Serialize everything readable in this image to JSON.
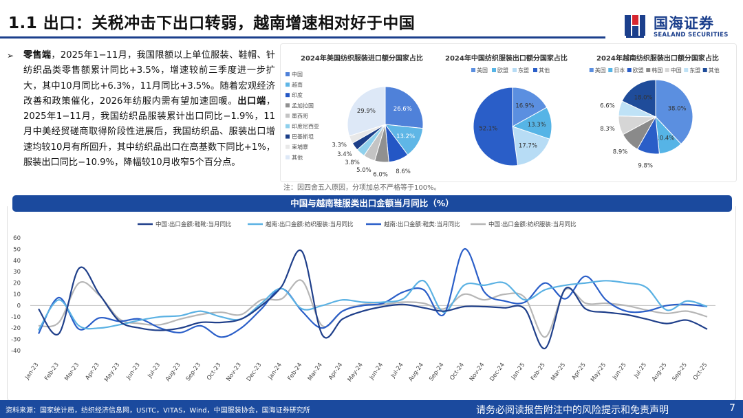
{
  "title": "1.1 出口：关税冲击下出口转弱，越南增速相对好于中国",
  "logo": {
    "cn": "国海证券",
    "en": "SEALAND SECURITIES"
  },
  "bullet": {
    "mark": "➢",
    "p1_bold": "零售端",
    "p1": "，2025年1−11月，我国限额以上单位服装、鞋帽、针纺织品类零售额累计同比+3.5%，增速较前三季度进一步扩大，其中10月同比+6.3%，11月同比+3.5%。随着宏观经济改善和政策催化，2026年纺服内需有望加速回暖。",
    "p2_bold": "出口端",
    "p2": "，2025年1−11月，我国纺织品服装累计出口同比−1.9%，11月中美经贸磋商取得阶段性进展后，我国纺织品、服装出口增速均较10月有所回升，其中纺织品出口在高基数下同比+1%，服装出口同比−10.9%，降幅较10月收窄5个百分点。"
  },
  "note": "注：因四舍五入原因，分项加总不严格等于100%。",
  "footer": {
    "source": "资料来源：国家统计局，纺织经济信息网，USITC，VITAS，Wind，中国服装协会，国海证券研究所",
    "disclaimer": "请务必阅读报告附注中的风险提示和免责声明",
    "page": "7"
  },
  "chart_data": [
    {
      "type": "pie",
      "title": "2024年美国纺织服装进口额分国家占比",
      "legend_position": "left",
      "categories": [
        "中国",
        "越南",
        "印度",
        "孟加拉国",
        "墨西哥",
        "印度尼西亚",
        "巴基斯坦",
        "柬埔寨",
        "其他"
      ],
      "values": [
        26.6,
        13.2,
        8.6,
        6.0,
        5.0,
        3.8,
        3.4,
        3.3,
        29.9
      ],
      "labels": [
        "26.6%",
        "13.2%",
        "8.6%",
        "6.0%",
        "5.0%",
        "3.8%",
        "3.4%",
        "3.3%",
        "29.9%"
      ],
      "colors": [
        "#4f81d9",
        "#5fb6e6",
        "#2457c5",
        "#909090",
        "#c4c4c4",
        "#8fd0ec",
        "#1c3f88",
        "#e8e8e8",
        "#dde8f7"
      ]
    },
    {
      "type": "pie",
      "title": "2024年中国纺织服装出口额分国家占比",
      "legend_position": "top",
      "categories": [
        "美国",
        "欧盟",
        "东盟",
        "其他"
      ],
      "values": [
        16.9,
        13.3,
        17.7,
        52.1
      ],
      "labels": [
        "16.9%",
        "13.3%",
        "17.7%",
        "52.1%"
      ],
      "colors": [
        "#5b8fe0",
        "#56b4e6",
        "#b7dcf5",
        "#2a5ec8"
      ]
    },
    {
      "type": "pie",
      "title": "2024年越南纺织服装出口额分国家占比",
      "legend_position": "top",
      "categories": [
        "美国",
        "日本",
        "欧盟",
        "韩国",
        "中国",
        "东盟",
        "其他"
      ],
      "values": [
        38.0,
        10.4,
        9.8,
        8.9,
        8.3,
        6.6,
        18.0
      ],
      "labels": [
        "38.0%",
        "10.4%",
        "9.8%",
        "8.9%",
        "8.3%",
        "6.6%",
        "18.0%"
      ],
      "colors": [
        "#5b8fe0",
        "#56b4e6",
        "#2a5ec8",
        "#8a8a8a",
        "#d6d6d6",
        "#bfe2f6",
        "#1f4c9a"
      ]
    },
    {
      "type": "line",
      "title": "中国与越南鞋服类出口金额当月同比（%）",
      "ylim": [
        -40,
        60
      ],
      "yticks": [
        60,
        50,
        40,
        30,
        20,
        10,
        0,
        -10,
        -20,
        -30,
        -40
      ],
      "x": [
        "Jan-23",
        "Feb-23",
        "Mar-23",
        "Apr-23",
        "May-23",
        "Jun-23",
        "Jul-23",
        "Aug-23",
        "Sep-23",
        "Oct-23",
        "Nov-23",
        "Dec-23",
        "Jan-24",
        "Feb-24",
        "Mar-24",
        "Apr-24",
        "May-24",
        "Jun-24",
        "Jul-24",
        "Aug-24",
        "Sep-24",
        "Oct-24",
        "Nov-24",
        "Dec-24",
        "Jan-25",
        "Feb-25",
        "Mar-25",
        "Apr-25",
        "May-25",
        "Jun-25",
        "Jul-25",
        "Aug-25",
        "Sep-25",
        "Oct-25"
      ],
      "grid": false,
      "legend_position": "top",
      "series": [
        {
          "name": "中国:出口金额:鞋靴:当月同比",
          "color": "#1f3f8a",
          "values": [
            -3,
            -25,
            33,
            10,
            -14,
            -20,
            -22,
            -20,
            -15,
            -15,
            -12,
            0,
            17,
            48,
            -26,
            -12,
            -5,
            -1,
            1,
            -2,
            -5,
            -1,
            -1,
            -2,
            -3,
            -38,
            15,
            -3,
            -6,
            -8,
            -12,
            -16,
            -13,
            -21
          ]
        },
        {
          "name": "越南:出口金额:纺织服装:当月同比",
          "color": "#5ab1e3",
          "values": [
            -22,
            5,
            -18,
            -20,
            -17,
            -13,
            -10,
            -9,
            -5,
            -10,
            -12,
            2,
            15,
            -3,
            0,
            5,
            3,
            3,
            6,
            22,
            -6,
            18,
            18,
            20,
            5,
            14,
            18,
            20,
            22,
            20,
            16,
            -4,
            4,
            -1
          ]
        },
        {
          "name": "越南:出口金额:鞋类:当月同比",
          "color": "#2a5ec8",
          "values": [
            -25,
            7,
            -21,
            -11,
            -14,
            -12,
            -20,
            -24,
            -18,
            -28,
            -20,
            -3,
            15,
            -5,
            -20,
            -5,
            0,
            2,
            12,
            14,
            -8,
            50,
            12,
            4,
            3,
            20,
            6,
            26,
            5,
            -5,
            -5,
            0,
            1,
            -1
          ]
        },
        {
          "name": "中国:出口金额:纺织服装:当月同比",
          "color": "#b6b6b6",
          "values": [
            -18,
            -15,
            20,
            9,
            -12,
            -16,
            -17,
            -12,
            -8,
            -6,
            -8,
            5,
            6,
            22,
            -18,
            -5,
            1,
            1,
            3,
            2,
            -3,
            10,
            5,
            10,
            7,
            -28,
            14,
            2,
            2,
            0,
            -4,
            -7,
            -5,
            -10
          ]
        }
      ]
    }
  ]
}
